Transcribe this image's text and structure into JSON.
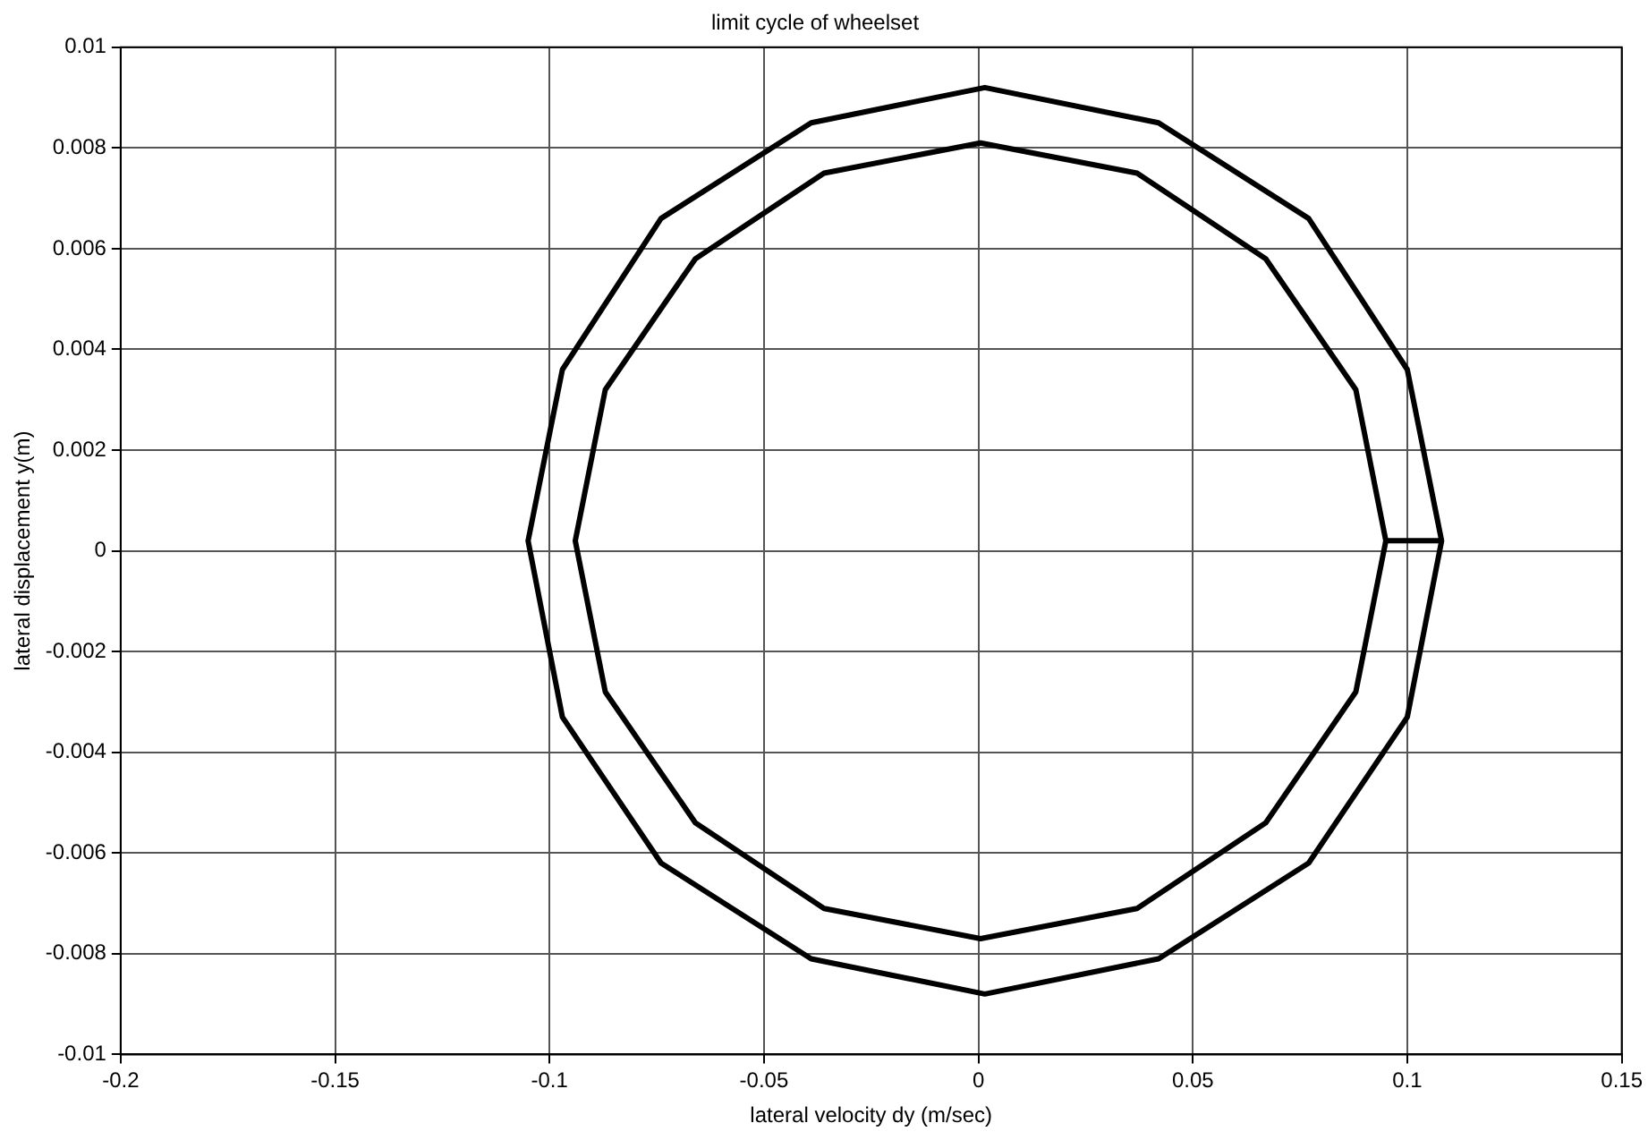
{
  "chart_data": {
    "type": "line",
    "title": "limit cycle of wheelset",
    "xlabel": "lateral velocity dy (m/sec)",
    "ylabel": "lateral displacement y(m)",
    "xlim": [
      -0.2,
      0.15
    ],
    "xticks": [
      -0.2,
      -0.15,
      -0.1,
      -0.05,
      0,
      0.05,
      0.1,
      0.15
    ],
    "ylim": [
      -0.01,
      0.01
    ],
    "yticks": [
      -0.01,
      -0.008,
      -0.006,
      -0.004,
      -0.002,
      0,
      0.002,
      0.004,
      0.006,
      0.008,
      0.01
    ],
    "grid": true,
    "legend": false,
    "marker": "none",
    "line_style": "solid",
    "series": [
      {
        "color": "#000000",
        "x": [
          0.108,
          0.1,
          0.077,
          0.042,
          0.0015,
          -0.039,
          -0.074,
          -0.097,
          -0.105,
          -0.097,
          -0.074,
          -0.039,
          0.0015,
          0.042,
          0.077,
          0.1,
          0.108,
          0.095,
          0.088,
          0.067,
          0.037,
          0.0005,
          -0.036,
          -0.066,
          -0.087,
          -0.094,
          -0.087,
          -0.066,
          -0.036,
          0.0005,
          0.037,
          0.067,
          0.088,
          0.095
        ],
        "values": [
          0.0002,
          0.0036,
          0.0066,
          0.0085,
          0.0092,
          0.0085,
          0.0066,
          0.0036,
          0.0002,
          -0.0033,
          -0.0062,
          -0.0081,
          -0.0088,
          -0.0081,
          -0.0062,
          -0.0033,
          0.0002,
          0.0002,
          0.0032,
          0.0058,
          0.0075,
          0.0081,
          0.0075,
          0.0058,
          0.0032,
          0.0002,
          -0.0028,
          -0.0054,
          -0.0071,
          -0.0077,
          -0.0071,
          -0.0054,
          -0.0028,
          0.0002
        ]
      }
    ]
  }
}
